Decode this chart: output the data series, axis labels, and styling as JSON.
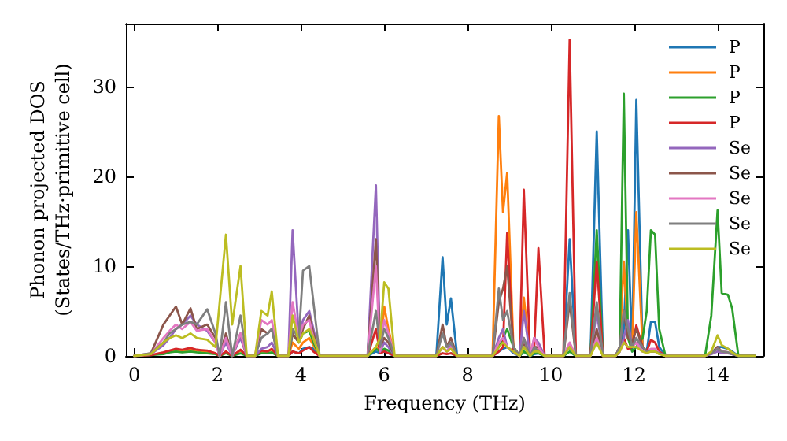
{
  "chart_data": {
    "type": "line",
    "xlabel": "Frequency (THz)",
    "ylabel": "Phonon projected DOS\n(States/THz·primitive cell)",
    "x": [
      0,
      0.4,
      0.7,
      0.85,
      1.0,
      1.15,
      1.35,
      1.5,
      1.75,
      1.95,
      2.05,
      2.2,
      2.35,
      2.55,
      2.7,
      2.9,
      3.05,
      3.2,
      3.3,
      3.45,
      3.7,
      3.8,
      3.95,
      4.05,
      4.2,
      4.3,
      4.45,
      5.6,
      5.8,
      5.9,
      6.0,
      6.1,
      6.25,
      7.25,
      7.4,
      7.5,
      7.6,
      7.75,
      8.6,
      8.75,
      8.85,
      8.95,
      9.1,
      9.25,
      9.35,
      9.5,
      9.6,
      9.7,
      9.85,
      10.3,
      10.45,
      10.6,
      10.95,
      11.1,
      11.25,
      11.55,
      11.65,
      11.75,
      11.85,
      11.95,
      12.05,
      12.2,
      12.3,
      12.4,
      12.5,
      12.6,
      12.75,
      13.7,
      13.85,
      14.0,
      14.1,
      14.25,
      14.35,
      14.5,
      14.9
    ],
    "series": [
      {
        "name": "P",
        "color": "#1f77b4",
        "values": [
          null,
          null,
          null,
          null,
          null,
          null,
          null,
          null,
          null,
          null,
          null,
          null,
          null,
          null,
          null,
          null,
          null,
          null,
          null,
          null,
          0,
          0.5,
          0.3,
          0.8,
          1.0,
          0.8,
          0,
          0,
          0.5,
          0.3,
          0.5,
          0.3,
          0,
          0,
          11,
          3.5,
          6.4,
          0,
          0,
          0.5,
          0.8,
          1.0,
          0.3,
          0,
          0.5,
          0,
          0.2,
          0.3,
          0,
          0,
          13,
          0,
          0,
          25,
          0,
          0,
          0.5,
          3,
          14,
          0.5,
          28.5,
          1,
          0.5,
          3.8,
          3.8,
          1,
          0,
          0,
          0.3,
          1,
          1,
          0.8,
          0.5,
          0,
          0
        ]
      },
      {
        "name": "P",
        "color": "#ff7f0e",
        "values": [
          null,
          null,
          null,
          0.5,
          0.6,
          0.6,
          0.7,
          0.6,
          0.5,
          0.3,
          0,
          0.5,
          0,
          0.6,
          0,
          0,
          0.5,
          0.5,
          0.7,
          0,
          0,
          1.5,
          0.8,
          1.5,
          2,
          1.2,
          0,
          0,
          1,
          0.5,
          5.5,
          3,
          0,
          0,
          1,
          0.5,
          0.8,
          0,
          0,
          26.7,
          16,
          20.4,
          1,
          0,
          6.5,
          0,
          0.5,
          0.8,
          0,
          0,
          1,
          0,
          0,
          2,
          0,
          0,
          1,
          10.5,
          2,
          1,
          16,
          1,
          0.5,
          null,
          null,
          null,
          null,
          null,
          null,
          null,
          null,
          null,
          null,
          null,
          null
        ]
      },
      {
        "name": "P",
        "color": "#2ca02c",
        "values": [
          0,
          0.1,
          0.2,
          0.4,
          0.5,
          0.4,
          0.5,
          0.4,
          0.3,
          0.2,
          0,
          0.3,
          0,
          0.3,
          0,
          0,
          0.3,
          0.3,
          0.4,
          0,
          0,
          2.5,
          1.5,
          2.5,
          2.8,
          1.5,
          0,
          0,
          0.8,
          0.5,
          0.8,
          0.6,
          0,
          0,
          0.3,
          null,
          0.3,
          0,
          0,
          1,
          2,
          3,
          1,
          0,
          0.5,
          0,
          0.3,
          0.3,
          0,
          0,
          0.5,
          0,
          0,
          14,
          0,
          0,
          0.5,
          29.2,
          2,
          0.5,
          1,
          2,
          5,
          14,
          13.5,
          3,
          0,
          0,
          4.5,
          16.2,
          7,
          6.8,
          5.3,
          0,
          0
        ]
      },
      {
        "name": "P",
        "color": "#d62728",
        "values": [
          0,
          0.1,
          0.4,
          0.6,
          0.8,
          0.7,
          0.9,
          0.7,
          0.6,
          0.3,
          0,
          0.5,
          0,
          0.7,
          0,
          0,
          0.6,
          0.5,
          0.8,
          0,
          0,
          0.5,
          0.3,
          0.6,
          1.0,
          0.5,
          0,
          0,
          3,
          0.3,
          0.5,
          0.3,
          0,
          0,
          0.3,
          0.2,
          0.3,
          0,
          0,
          0.5,
          1,
          13.7,
          0.5,
          0,
          18.5,
          0,
          1,
          12,
          0,
          0,
          35.2,
          0,
          0,
          10.5,
          0,
          0,
          0.5,
          2,
          0.8,
          1,
          3.4,
          1,
          0.5,
          1.8,
          1.5,
          0.5,
          0,
          0,
          null,
          null,
          null,
          null,
          null,
          null,
          null
        ]
      },
      {
        "name": "Se",
        "color": "#9467bd",
        "values": [
          0,
          0.2,
          1.2,
          2,
          3,
          3.5,
          4.5,
          3.5,
          2.8,
          1.5,
          0,
          1.5,
          0,
          2,
          0,
          0,
          0.8,
          1,
          1.5,
          0,
          0,
          14,
          2,
          4,
          5,
          3,
          0,
          0,
          19,
          0.5,
          1.5,
          1,
          0,
          0,
          1,
          0.5,
          1.2,
          0,
          0,
          2,
          3,
          1,
          0.5,
          0,
          5,
          0,
          2,
          1.5,
          0,
          0,
          1,
          0,
          0,
          5,
          0,
          0,
          0.5,
          2,
          4,
          1,
          2,
          0.5,
          0.5,
          0.5,
          0.5,
          0.3,
          0,
          0,
          0.2,
          0.5,
          0.3,
          0.3,
          0.2,
          0,
          0
        ]
      },
      {
        "name": "Se",
        "color": "#8c564b",
        "values": [
          0,
          0.3,
          3.5,
          4.5,
          5.5,
          3.5,
          5.3,
          3,
          3.5,
          2,
          0,
          2.5,
          0,
          2.5,
          0,
          0,
          3,
          2.5,
          3,
          0,
          0,
          2.5,
          1.5,
          3,
          4.5,
          2.5,
          0,
          0,
          13,
          1,
          2,
          1.5,
          0,
          0,
          3.5,
          1,
          2,
          0,
          0,
          6,
          7.5,
          10,
          1,
          0,
          1.5,
          0,
          1,
          1,
          0,
          0,
          6,
          0,
          0,
          3,
          0,
          0,
          1,
          5,
          2,
          1.5,
          3,
          1,
          0.5,
          0.5,
          0.5,
          0.3,
          0,
          0,
          0.3,
          1,
          0.5,
          0.4,
          0.2,
          0,
          0
        ]
      },
      {
        "name": "Se",
        "color": "#e377c2",
        "values": [
          0,
          0.2,
          2,
          2.8,
          3.5,
          3,
          3.8,
          2.8,
          3,
          1.5,
          0,
          2,
          0,
          2.5,
          0,
          0,
          4,
          3.5,
          4,
          0,
          0,
          6,
          2,
          3.5,
          4,
          2,
          0,
          0,
          10,
          0.5,
          4,
          2.5,
          0,
          0,
          1,
          0.5,
          1,
          0,
          0,
          1.5,
          2,
          1,
          0.5,
          0,
          2,
          0,
          2,
          1,
          0,
          0,
          1.5,
          0,
          0,
          2,
          0,
          0,
          0.5,
          1.5,
          1,
          1,
          1.5,
          0.5,
          0.5,
          0.8,
          0.8,
          0.3,
          0,
          0,
          0.3,
          0.8,
          0.5,
          0.4,
          0.2,
          null,
          null
        ]
      },
      {
        "name": "Se",
        "color": "#7f7f7f",
        "values": [
          0,
          0.3,
          1.5,
          2.5,
          3,
          3.5,
          3.8,
          3.5,
          5.2,
          2.5,
          0,
          6,
          0,
          4.5,
          0,
          0,
          2,
          2.5,
          3,
          0,
          0,
          3,
          2,
          9.5,
          10,
          6,
          0,
          0,
          5,
          1,
          3,
          2,
          0,
          0,
          2.5,
          1,
          1.5,
          0,
          0,
          7.5,
          4,
          5,
          1,
          0,
          2,
          0,
          1,
          0.5,
          0,
          0,
          7,
          0,
          0,
          6,
          0,
          0,
          1,
          5,
          3,
          1,
          2,
          1,
          0.5,
          0.5,
          0.5,
          0.3,
          0,
          0,
          0.3,
          0.8,
          0.5,
          0.4,
          0.2,
          0,
          0
        ]
      },
      {
        "name": "Se",
        "color": "#bcbd22",
        "values": [
          0,
          0.2,
          1.5,
          2,
          2.3,
          2,
          2.5,
          2,
          1.8,
          1,
          6,
          13.5,
          3.5,
          10,
          0,
          0,
          5,
          4.5,
          7.2,
          0,
          0,
          4.5,
          1.5,
          2.5,
          3,
          2,
          0,
          0,
          1,
          2,
          8.2,
          7.5,
          0,
          0,
          1,
          0.5,
          0.8,
          0,
          0,
          1,
          1.5,
          1,
          0.5,
          0,
          1,
          0,
          0.5,
          0.5,
          0,
          0,
          1,
          0,
          0,
          1.5,
          0,
          0,
          0.5,
          1.5,
          1,
          1,
          1,
          0.5,
          0.3,
          0.5,
          0.5,
          0.2,
          0,
          0,
          0.5,
          2.3,
          1.2,
          0.8,
          0.4,
          0,
          0
        ]
      }
    ],
    "xlim": [
      -0.2,
      15.1
    ],
    "ylim": [
      0,
      37
    ],
    "xticks": [
      0,
      2,
      4,
      6,
      8,
      10,
      12,
      14
    ],
    "yticks": [
      0,
      10,
      20,
      30
    ],
    "grid": false,
    "legend": "top right",
    "marker": "none",
    "line_style": "solid"
  }
}
